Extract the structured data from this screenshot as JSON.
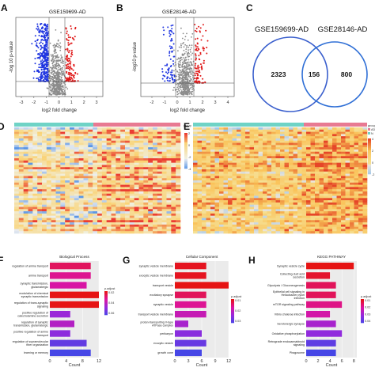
{
  "panel_labels": {
    "a": "A",
    "b": "B",
    "c": "C",
    "d": "D",
    "e": "E",
    "f": "F",
    "g": "G",
    "h": "H"
  },
  "volcano_a": {
    "title": "GSE159699-AD",
    "xlabel": "log2 fold change",
    "ylabel": "-log 10 p-value",
    "xticks": [
      "-3",
      "-2",
      "-1",
      "0",
      "1",
      "2",
      "3"
    ]
  },
  "volcano_b": {
    "title": "GSE28146-AD",
    "xlabel": "log2 fold change",
    "ylabel": "-log10 p-value",
    "xticks": [
      "-2",
      "-1",
      "0",
      "1",
      "2",
      "3",
      "4"
    ]
  },
  "venn": {
    "left_title": "GSE159699-AD",
    "right_title": "GSE28146-AD",
    "left_only": "2323",
    "overlap": "156",
    "right_only": "800",
    "colors": {
      "left": "#3a5fcd",
      "right": "#2f6fd6"
    }
  },
  "heatmap_d": {
    "legend_title": "group",
    "scale": [
      "2",
      "0",
      "-2",
      "-4"
    ]
  },
  "heatmap_e": {
    "legend_title": "group",
    "legend_items": [
      "AD",
      "N"
    ],
    "scale": [
      "4",
      "2",
      "0",
      "-2"
    ]
  },
  "chart_data": [
    {
      "type": "bar",
      "panel": "F",
      "title": "Biological Process",
      "xlabel": "Count",
      "categories": [
        "regulation of amine transport",
        "amine transport",
        "synaptic transmission, glutamatergic",
        "modulation of chemical synaptic transmission",
        "regulation of trans-synaptic signaling",
        "positive regulation of catecholamine secretion",
        "regulation of synaptic transmission, glutamatergic",
        "positive regulation of amine transport",
        "regulation of supramolecular fiber organization",
        "learning or memory"
      ],
      "values": [
        10,
        10,
        9,
        12,
        12,
        5,
        6,
        5,
        9,
        10
      ],
      "p_adjust": [
        0.02,
        0.03,
        0.035,
        0.005,
        0.005,
        0.06,
        0.05,
        0.065,
        0.08,
        0.09
      ],
      "xticks": [
        "0",
        "4",
        "8",
        "12"
      ],
      "xlim": [
        0,
        12
      ],
      "legend_title": "p.adjust",
      "legend_ticks": [
        "0.02",
        "0.04",
        "0.06"
      ]
    },
    {
      "type": "bar",
      "panel": "G",
      "title": "Cellular Component",
      "xlabel": "Count",
      "categories": [
        "synaptic vesicle membrane",
        "exocytic vesicle membrane",
        "transport vesicle",
        "excitatory synapse",
        "synaptic vesicle",
        "transport vesicle membrane",
        "proton-transporting V-type ATPase complex",
        "perikaryon",
        "exocytic vesicle",
        "growth cone"
      ],
      "values": [
        7,
        7,
        12,
        7,
        7,
        7,
        3,
        6,
        7,
        6
      ],
      "p_adjust": [
        0.005,
        0.005,
        0.004,
        0.01,
        0.015,
        0.02,
        0.025,
        0.03,
        0.035,
        0.04
      ],
      "xticks": [
        "0",
        "3",
        "6",
        "9",
        "12"
      ],
      "xlim": [
        0,
        12
      ],
      "legend_title": "p.adjust",
      "legend_ticks": [
        "0.01",
        "0.02",
        "0.03"
      ]
    },
    {
      "type": "bar",
      "panel": "H",
      "title": "KEGG PATHWAY",
      "xlabel": "Count",
      "categories": [
        "Synaptic vesicle cycle",
        "Collecting duct acid secretion",
        "Glycolysis / Gluconeogenesis",
        "Epithelial cell signaling in Helicobacter pylori infection",
        "mTOR signaling pathway",
        "Vibrio cholerae infection",
        "Serotonergic synapse",
        "Oxidative phosphorylation",
        "Retrograde endocannabinoid signaling",
        "Phagosome"
      ],
      "values": [
        8,
        4,
        5,
        5,
        6,
        4,
        5,
        6,
        5,
        5
      ],
      "p_adjust": [
        0.002,
        0.005,
        0.01,
        0.01,
        0.015,
        0.02,
        0.03,
        0.035,
        0.045,
        0.05
      ],
      "xticks": [
        "0",
        "2",
        "4",
        "6",
        "8"
      ],
      "xlim": [
        0,
        8.5
      ],
      "legend_title": "p.adjust",
      "legend_ticks": [
        "0.01",
        "0.02",
        "0.03",
        "0.04"
      ]
    }
  ]
}
